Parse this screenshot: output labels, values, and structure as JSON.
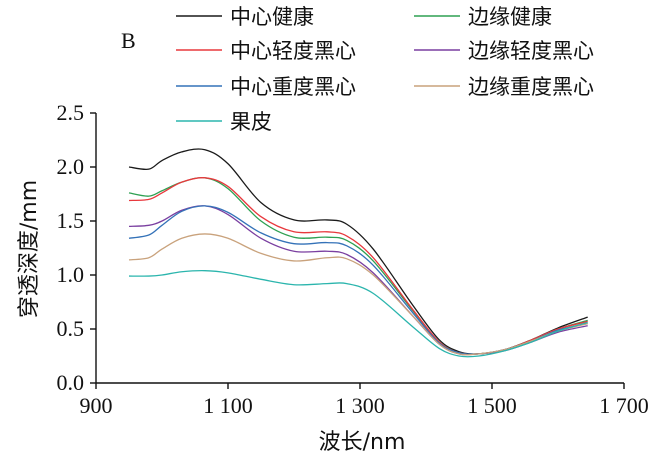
{
  "chart_data": {
    "type": "line",
    "panel_label": "B",
    "xlabel": "波长/nm",
    "ylabel": "穿透深度/mm",
    "xlim": [
      900,
      1700
    ],
    "ylim": [
      0,
      2.5
    ],
    "x_ticks": [
      900,
      1100,
      1300,
      1500,
      1700
    ],
    "x_tick_labels": [
      "900",
      "1 100",
      "1 300",
      "1 500",
      "1 700"
    ],
    "y_ticks": [
      0,
      0.5,
      1.0,
      1.5,
      2.0,
      2.5
    ],
    "y_tick_labels": [
      "0.0",
      "0.5",
      "1.0",
      "1.5",
      "2.0",
      "2.5"
    ],
    "grid": false,
    "legend_position": "top",
    "x": [
      950,
      980,
      1000,
      1030,
      1065,
      1100,
      1150,
      1200,
      1250,
      1280,
      1320,
      1380,
      1420,
      1450,
      1480,
      1520,
      1560,
      1600,
      1645
    ],
    "series": [
      {
        "name": "中心健康",
        "color": "#1a1a1a",
        "values": [
          2.0,
          1.98,
          2.06,
          2.14,
          2.16,
          2.03,
          1.67,
          1.51,
          1.51,
          1.47,
          1.24,
          0.72,
          0.4,
          0.29,
          0.27,
          0.31,
          0.4,
          0.51,
          0.61
        ]
      },
      {
        "name": "边缘健康",
        "color": "#2ea052",
        "values": [
          1.76,
          1.73,
          1.78,
          1.86,
          1.9,
          1.8,
          1.5,
          1.35,
          1.35,
          1.32,
          1.13,
          0.67,
          0.38,
          0.28,
          0.27,
          0.31,
          0.4,
          0.5,
          0.58
        ]
      },
      {
        "name": "中心轻度黑心",
        "color": "#e8383d",
        "values": [
          1.69,
          1.7,
          1.76,
          1.86,
          1.9,
          1.82,
          1.54,
          1.4,
          1.4,
          1.36,
          1.16,
          0.68,
          0.38,
          0.28,
          0.27,
          0.31,
          0.4,
          0.5,
          0.57
        ]
      },
      {
        "name": "边缘轻度黑心",
        "color": "#7a3fa0",
        "values": [
          1.45,
          1.46,
          1.5,
          1.6,
          1.64,
          1.56,
          1.34,
          1.22,
          1.22,
          1.19,
          1.02,
          0.62,
          0.36,
          0.27,
          0.27,
          0.3,
          0.38,
          0.47,
          0.53
        ]
      },
      {
        "name": "中心重度黑心",
        "color": "#3472b8",
        "values": [
          1.34,
          1.37,
          1.46,
          1.59,
          1.64,
          1.58,
          1.39,
          1.29,
          1.3,
          1.27,
          1.09,
          0.65,
          0.37,
          0.28,
          0.27,
          0.31,
          0.39,
          0.49,
          0.55
        ]
      },
      {
        "name": "边缘重度黑心",
        "color": "#c9a27c",
        "values": [
          1.14,
          1.16,
          1.24,
          1.34,
          1.38,
          1.34,
          1.2,
          1.13,
          1.16,
          1.15,
          1.0,
          0.62,
          0.36,
          0.27,
          0.27,
          0.31,
          0.39,
          0.48,
          0.55
        ]
      },
      {
        "name": "果皮",
        "color": "#2bb5ad",
        "values": [
          0.99,
          0.99,
          1.0,
          1.03,
          1.04,
          1.02,
          0.96,
          0.91,
          0.92,
          0.92,
          0.83,
          0.52,
          0.32,
          0.25,
          0.25,
          0.3,
          0.38,
          0.48,
          0.56
        ]
      }
    ]
  }
}
